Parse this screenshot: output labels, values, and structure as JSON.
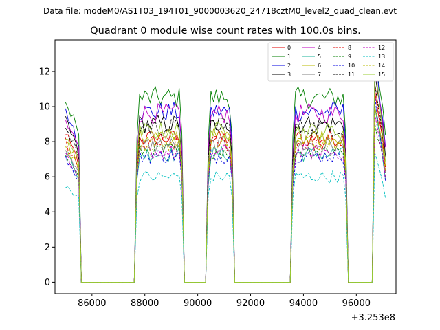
{
  "suptitle": "Data file: modeM0/AS1T03_194T01_9000003620_24718cztM0_level2_quad_clean.evt",
  "chart_data": {
    "type": "line",
    "title": "Quadrant 0 module wise count rates with 100.0s bins.",
    "xlabel": "",
    "ylabel": "",
    "x_offset_label": "+3.253e8",
    "xlim": [
      84600,
      97500
    ],
    "ylim": [
      -0.65,
      13.8
    ],
    "xticks": [
      86000,
      88000,
      90000,
      92000,
      94000,
      96000
    ],
    "xtick_labels": [
      "86000",
      "88000",
      "90000",
      "92000",
      "94000",
      "96000"
    ],
    "yticks": [
      0,
      2,
      4,
      6,
      8,
      10,
      12
    ],
    "ytick_labels": [
      "0",
      "2",
      "4",
      "6",
      "8",
      "10",
      "12"
    ],
    "legend_position": "top-right",
    "segments": [
      {
        "start": 85000,
        "end": 85500
      },
      {
        "start": 87700,
        "end": 89400
      },
      {
        "start": 90400,
        "end": 91300
      },
      {
        "start": 93600,
        "end": 95600
      },
      {
        "start": 96700,
        "end": 97100
      }
    ],
    "series": [
      {
        "name": "0",
        "color": "#e00000",
        "dash": "solid",
        "base": 8.2,
        "first": 8.5,
        "spike": 11.0
      },
      {
        "name": "1",
        "color": "#007f00",
        "dash": "solid",
        "base": 10.5,
        "first": 10.2,
        "spike": 13.0
      },
      {
        "name": "2",
        "color": "#0000e0",
        "dash": "solid",
        "base": 9.7,
        "first": 9.7,
        "spike": 12.7
      },
      {
        "name": "3",
        "color": "#000000",
        "dash": "solid",
        "base": 9.0,
        "first": 9.2,
        "spike": 12.0
      },
      {
        "name": "4",
        "color": "#bf00bf",
        "dash": "solid",
        "base": 9.6,
        "first": 9.0,
        "spike": 12.4
      },
      {
        "name": "5",
        "color": "#1ab39a",
        "dash": "solid",
        "base": 7.3,
        "first": 7.5,
        "spike": 10.0
      },
      {
        "name": "6",
        "color": "#b8b800",
        "dash": "solid",
        "base": 8.3,
        "first": 8.0,
        "spike": 9.8
      },
      {
        "name": "7",
        "color": "#7f7f7f",
        "dash": "solid",
        "base": 7.8,
        "first": 7.6,
        "spike": 10.0
      },
      {
        "name": "8",
        "color": "#e00000",
        "dash": "dashed",
        "base": 7.9,
        "first": 8.0,
        "spike": 11.5
      },
      {
        "name": "9",
        "color": "#007f00",
        "dash": "dashed",
        "base": 7.5,
        "first": 7.3,
        "spike": 9.0
      },
      {
        "name": "10",
        "color": "#0000e0",
        "dash": "dashed",
        "base": 7.2,
        "first": 7.0,
        "spike": 10.5
      },
      {
        "name": "11",
        "color": "#000000",
        "dash": "dashed",
        "base": 8.8,
        "first": 8.9,
        "spike": 11.4
      },
      {
        "name": "12",
        "color": "#bf00bf",
        "dash": "dashed",
        "base": 7.4,
        "first": 7.2,
        "spike": 9.5
      },
      {
        "name": "13",
        "color": "#00bfbf",
        "dash": "dashed",
        "base": 6.0,
        "first": 5.4,
        "spike": 7.4
      },
      {
        "name": "14",
        "color": "#b8b800",
        "dash": "dashed",
        "base": 7.9,
        "first": 7.7,
        "spike": 10.2
      },
      {
        "name": "15",
        "color": "#9acd32",
        "dash": "solid",
        "base": 8.6,
        "first": 8.2,
        "spike": 12.6
      }
    ]
  }
}
